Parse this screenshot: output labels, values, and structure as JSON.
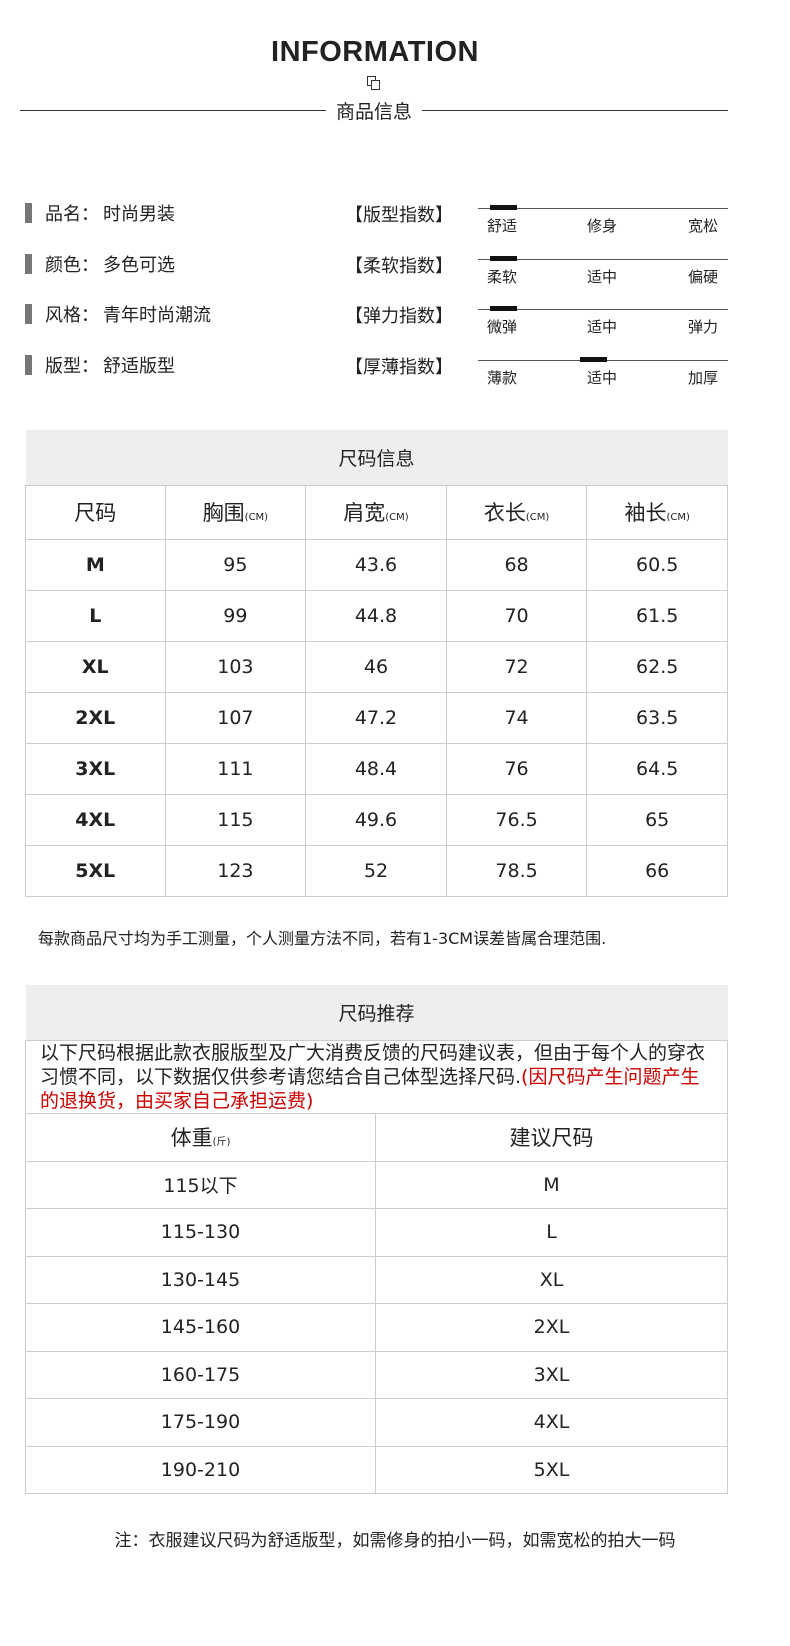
{
  "header": {
    "title": "INFORMATION",
    "subtitle": "商品信息"
  },
  "info": [
    {
      "label": "品名：",
      "value": "时尚男装"
    },
    {
      "label": "颜色：",
      "value": "多色可选"
    },
    {
      "label": "风格：",
      "value": "青年时尚潮流"
    },
    {
      "label": "版型：",
      "value": "舒适版型"
    }
  ],
  "indices": [
    {
      "label": "【版型指数】",
      "options": [
        "舒适",
        "修身",
        "宽松"
      ],
      "level": 0.05
    },
    {
      "label": "【柔软指数】",
      "options": [
        "柔软",
        "适中",
        "偏硬"
      ],
      "level": 0.05
    },
    {
      "label": "【弹力指数】",
      "options": [
        "微弹",
        "适中",
        "弹力"
      ],
      "level": 0.05
    },
    {
      "label": "【厚薄指数】",
      "options": [
        "薄款",
        "适中",
        "加厚"
      ],
      "level": 0.5
    }
  ],
  "size_table": {
    "title": "尺码信息",
    "unit": "(CM)",
    "headers": [
      "尺码",
      "胸围",
      "肩宽",
      "衣长",
      "袖长"
    ],
    "rows": [
      [
        "M",
        "95",
        "43.6",
        "68",
        "60.5"
      ],
      [
        "L",
        "99",
        "44.8",
        "70",
        "61.5"
      ],
      [
        "XL",
        "103",
        "46",
        "72",
        "62.5"
      ],
      [
        "2XL",
        "107",
        "47.2",
        "74",
        "63.5"
      ],
      [
        "3XL",
        "111",
        "48.4",
        "76",
        "64.5"
      ],
      [
        "4XL",
        "115",
        "49.6",
        "76.5",
        "65"
      ],
      [
        "5XL",
        "123",
        "52",
        "78.5",
        "66"
      ]
    ],
    "note": "每款商品尺寸均为手工测量，个人测量方法不同，若有1-3CM误差皆属合理范围."
  },
  "recommend": {
    "title": "尺码推荐",
    "desc": "以下尺码根据此款衣服版型及广大消费反馈的尺码建议表，但由于每个人的穿衣习惯不同，以下数据仅供参考请您结合自己体型选择尺码.",
    "desc_red": "(因尺码产生问题产生的退换货，由买家自己承担运费)",
    "headers": [
      "体重",
      "建议尺码"
    ],
    "weight_unit": "(斤)",
    "rows": [
      [
        "115以下",
        "M"
      ],
      [
        "115-130",
        "L"
      ],
      [
        "130-145",
        "XL"
      ],
      [
        "145-160",
        "2XL"
      ],
      [
        "160-175",
        "3XL"
      ],
      [
        "175-190",
        "4XL"
      ],
      [
        "190-210",
        "5XL"
      ]
    ],
    "footer": "注：衣服建议尺码为舒适版型，如需修身的拍小一码，如需宽松的拍大一码"
  },
  "colors": {
    "accent_red": "#cc0000",
    "header_gray": "#eeeeee"
  }
}
